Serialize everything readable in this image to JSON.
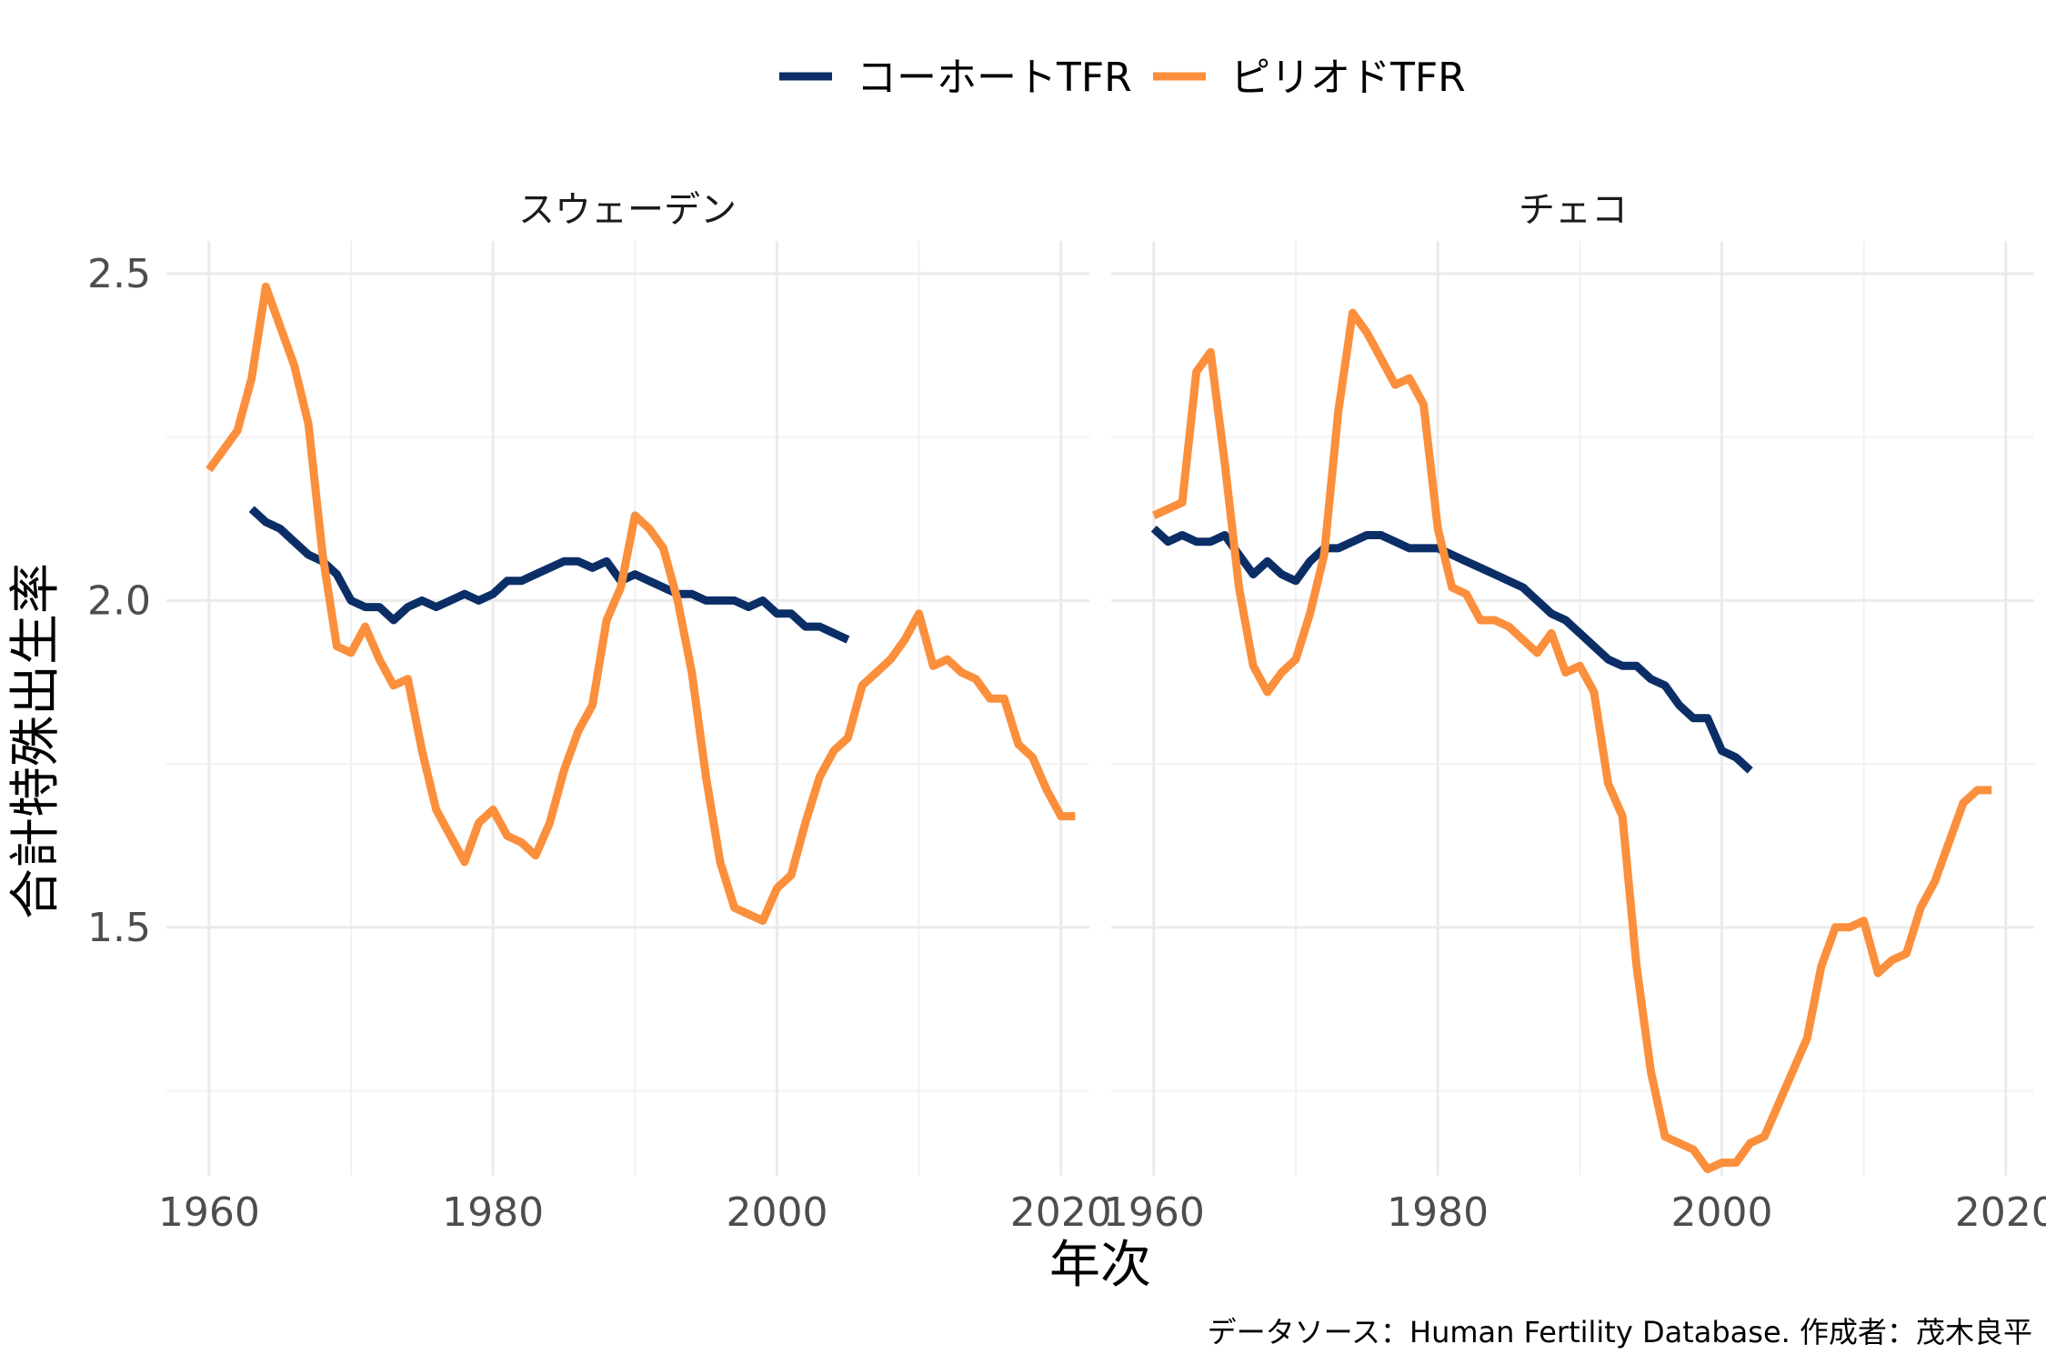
{
  "chart_data": {
    "type": "line",
    "xlabel": "年次",
    "ylabel": "合計特殊出生率",
    "caption": "データソース：Human Fertility Database. 作成者：茂木良平",
    "legend_position": "top",
    "xlim": [
      1957,
      2022
    ],
    "ylim": [
      1.12,
      2.55
    ],
    "x_ticks": [
      1960,
      1980,
      2000,
      2020
    ],
    "y_ticks": [
      1.5,
      2.0,
      2.5
    ],
    "x_tick_labels": [
      "1960",
      "1980",
      "2000",
      "2020"
    ],
    "y_tick_labels": [
      "1.5",
      "2.0",
      "2.5"
    ],
    "grid": true,
    "series_legend": [
      {
        "name": "コーホートTFR",
        "color": "#0b2e67"
      },
      {
        "name": "ピリオドTFR",
        "color": "#fb8f3c"
      }
    ],
    "panels": [
      {
        "title": "スウェーデン",
        "series": [
          {
            "name": "コーホートTFR",
            "color": "#0b2e67",
            "x": [
              1963,
              1964,
              1965,
              1966,
              1967,
              1968,
              1969,
              1970,
              1971,
              1972,
              1973,
              1974,
              1975,
              1976,
              1977,
              1978,
              1979,
              1980,
              1981,
              1982,
              1983,
              1984,
              1985,
              1986,
              1987,
              1988,
              1989,
              1990,
              1991,
              1992,
              1993,
              1994,
              1995,
              1996,
              1997,
              1998,
              1999,
              2000,
              2001,
              2002,
              2003,
              2004,
              2005
            ],
            "y": [
              2.14,
              2.12,
              2.11,
              2.09,
              2.07,
              2.06,
              2.04,
              2.0,
              1.99,
              1.99,
              1.97,
              1.99,
              2.0,
              1.99,
              2.0,
              2.01,
              2.0,
              2.01,
              2.03,
              2.03,
              2.04,
              2.05,
              2.06,
              2.06,
              2.05,
              2.06,
              2.03,
              2.04,
              2.03,
              2.02,
              2.01,
              2.01,
              2.0,
              2.0,
              2.0,
              1.99,
              2.0,
              1.98,
              1.98,
              1.96,
              1.96,
              1.95,
              1.94
            ]
          },
          {
            "name": "ピリオドTFR",
            "color": "#fb8f3c",
            "x": [
              1960,
              1961,
              1962,
              1963,
              1964,
              1965,
              1966,
              1967,
              1968,
              1969,
              1970,
              1971,
              1972,
              1973,
              1974,
              1975,
              1976,
              1977,
              1978,
              1979,
              1980,
              1981,
              1982,
              1983,
              1984,
              1985,
              1986,
              1987,
              1988,
              1989,
              1990,
              1991,
              1992,
              1993,
              1994,
              1995,
              1996,
              1997,
              1998,
              1999,
              2000,
              2001,
              2002,
              2003,
              2004,
              2005,
              2006,
              2007,
              2008,
              2009,
              2010,
              2011,
              2012,
              2013,
              2014,
              2015,
              2016,
              2017,
              2018,
              2019,
              2020,
              2021
            ],
            "y": [
              2.2,
              2.23,
              2.26,
              2.34,
              2.48,
              2.42,
              2.36,
              2.27,
              2.07,
              1.93,
              1.92,
              1.96,
              1.91,
              1.87,
              1.88,
              1.77,
              1.68,
              1.64,
              1.6,
              1.66,
              1.68,
              1.64,
              1.63,
              1.61,
              1.66,
              1.74,
              1.8,
              1.84,
              1.97,
              2.02,
              2.13,
              2.11,
              2.08,
              2.0,
              1.89,
              1.73,
              1.6,
              1.53,
              1.52,
              1.51,
              1.56,
              1.58,
              1.66,
              1.73,
              1.77,
              1.79,
              1.87,
              1.89,
              1.91,
              1.94,
              1.98,
              1.9,
              1.91,
              1.89,
              1.88,
              1.85,
              1.85,
              1.78,
              1.76,
              1.71,
              1.67,
              1.67
            ]
          }
        ]
      },
      {
        "title": "チェコ",
        "series": [
          {
            "name": "コーホートTFR",
            "color": "#0b2e67",
            "x": [
              1960,
              1961,
              1962,
              1963,
              1964,
              1965,
              1966,
              1967,
              1968,
              1969,
              1970,
              1971,
              1972,
              1973,
              1974,
              1975,
              1976,
              1977,
              1978,
              1979,
              1980,
              1981,
              1982,
              1983,
              1984,
              1985,
              1986,
              1987,
              1988,
              1989,
              1990,
              1991,
              1992,
              1993,
              1994,
              1995,
              1996,
              1997,
              1998,
              1999,
              2000,
              2001,
              2002
            ],
            "y": [
              2.11,
              2.09,
              2.1,
              2.09,
              2.09,
              2.1,
              2.07,
              2.04,
              2.06,
              2.04,
              2.03,
              2.06,
              2.08,
              2.08,
              2.09,
              2.1,
              2.1,
              2.09,
              2.08,
              2.08,
              2.08,
              2.07,
              2.06,
              2.05,
              2.04,
              2.03,
              2.02,
              2.0,
              1.98,
              1.97,
              1.95,
              1.93,
              1.91,
              1.9,
              1.9,
              1.88,
              1.87,
              1.84,
              1.82,
              1.82,
              1.77,
              1.76,
              1.74
            ]
          },
          {
            "name": "ピリオドTFR",
            "color": "#fb8f3c",
            "x": [
              1960,
              1961,
              1962,
              1963,
              1964,
              1965,
              1966,
              1967,
              1968,
              1969,
              1970,
              1971,
              1972,
              1973,
              1974,
              1975,
              1976,
              1977,
              1978,
              1979,
              1980,
              1981,
              1982,
              1983,
              1984,
              1985,
              1986,
              1987,
              1988,
              1989,
              1990,
              1991,
              1992,
              1993,
              1994,
              1995,
              1996,
              1997,
              1998,
              1999,
              2000,
              2001,
              2002,
              2003,
              2004,
              2005,
              2006,
              2007,
              2008,
              2009,
              2010,
              2011,
              2012,
              2013,
              2014,
              2015,
              2016,
              2017,
              2018,
              2019
            ],
            "y": [
              2.13,
              2.14,
              2.15,
              2.35,
              2.38,
              2.21,
              2.02,
              1.9,
              1.86,
              1.89,
              1.91,
              1.98,
              2.07,
              2.29,
              2.44,
              2.41,
              2.37,
              2.33,
              2.34,
              2.3,
              2.11,
              2.02,
              2.01,
              1.97,
              1.97,
              1.96,
              1.94,
              1.92,
              1.95,
              1.89,
              1.9,
              1.86,
              1.72,
              1.67,
              1.44,
              1.28,
              1.18,
              1.17,
              1.16,
              1.13,
              1.14,
              1.14,
              1.17,
              1.18,
              1.23,
              1.28,
              1.33,
              1.44,
              1.5,
              1.5,
              1.51,
              1.43,
              1.45,
              1.46,
              1.53,
              1.57,
              1.63,
              1.69,
              1.71,
              1.71
            ]
          }
        ]
      }
    ]
  }
}
